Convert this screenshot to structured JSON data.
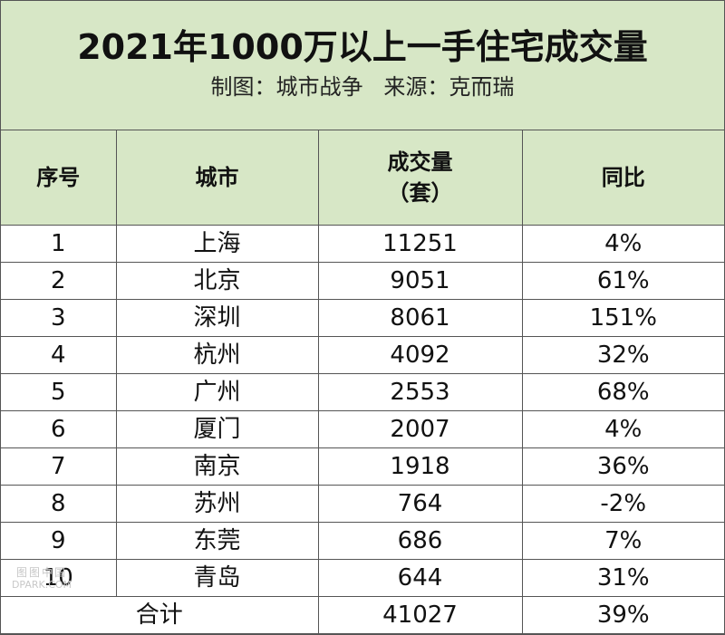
{
  "header": {
    "title": "2021年1000万以上一手住宅成交量",
    "subtitle": "制图：城市战争   来源：克而瑞"
  },
  "table": {
    "columns": [
      "序号",
      "城市",
      "成交量",
      "（套）",
      "同比"
    ],
    "rows": [
      {
        "rank": "1",
        "city": "上海",
        "volume": "11251",
        "yoy": "4%"
      },
      {
        "rank": "2",
        "city": "北京",
        "volume": "9051",
        "yoy": "61%"
      },
      {
        "rank": "3",
        "city": "深圳",
        "volume": "8061",
        "yoy": "151%"
      },
      {
        "rank": "4",
        "city": "杭州",
        "volume": "4092",
        "yoy": "32%"
      },
      {
        "rank": "5",
        "city": "广州",
        "volume": "2553",
        "yoy": "68%"
      },
      {
        "rank": "6",
        "city": "厦门",
        "volume": "2007",
        "yoy": "4%"
      },
      {
        "rank": "7",
        "city": "南京",
        "volume": "1918",
        "yoy": "36%"
      },
      {
        "rank": "8",
        "city": "苏州",
        "volume": "764",
        "yoy": "-2%"
      },
      {
        "rank": "9",
        "city": "东莞",
        "volume": "686",
        "yoy": "7%"
      },
      {
        "rank": "10",
        "city": "青岛",
        "volume": "644",
        "yoy": "31%"
      }
    ],
    "total": {
      "label": "合计",
      "volume": "41027",
      "yoy": "39%"
    }
  },
  "watermark": {
    "top": "图图中国",
    "bottom": "DPARK.COM"
  },
  "colors": {
    "header_bg": "#d7e7c6",
    "border": "#555555"
  }
}
